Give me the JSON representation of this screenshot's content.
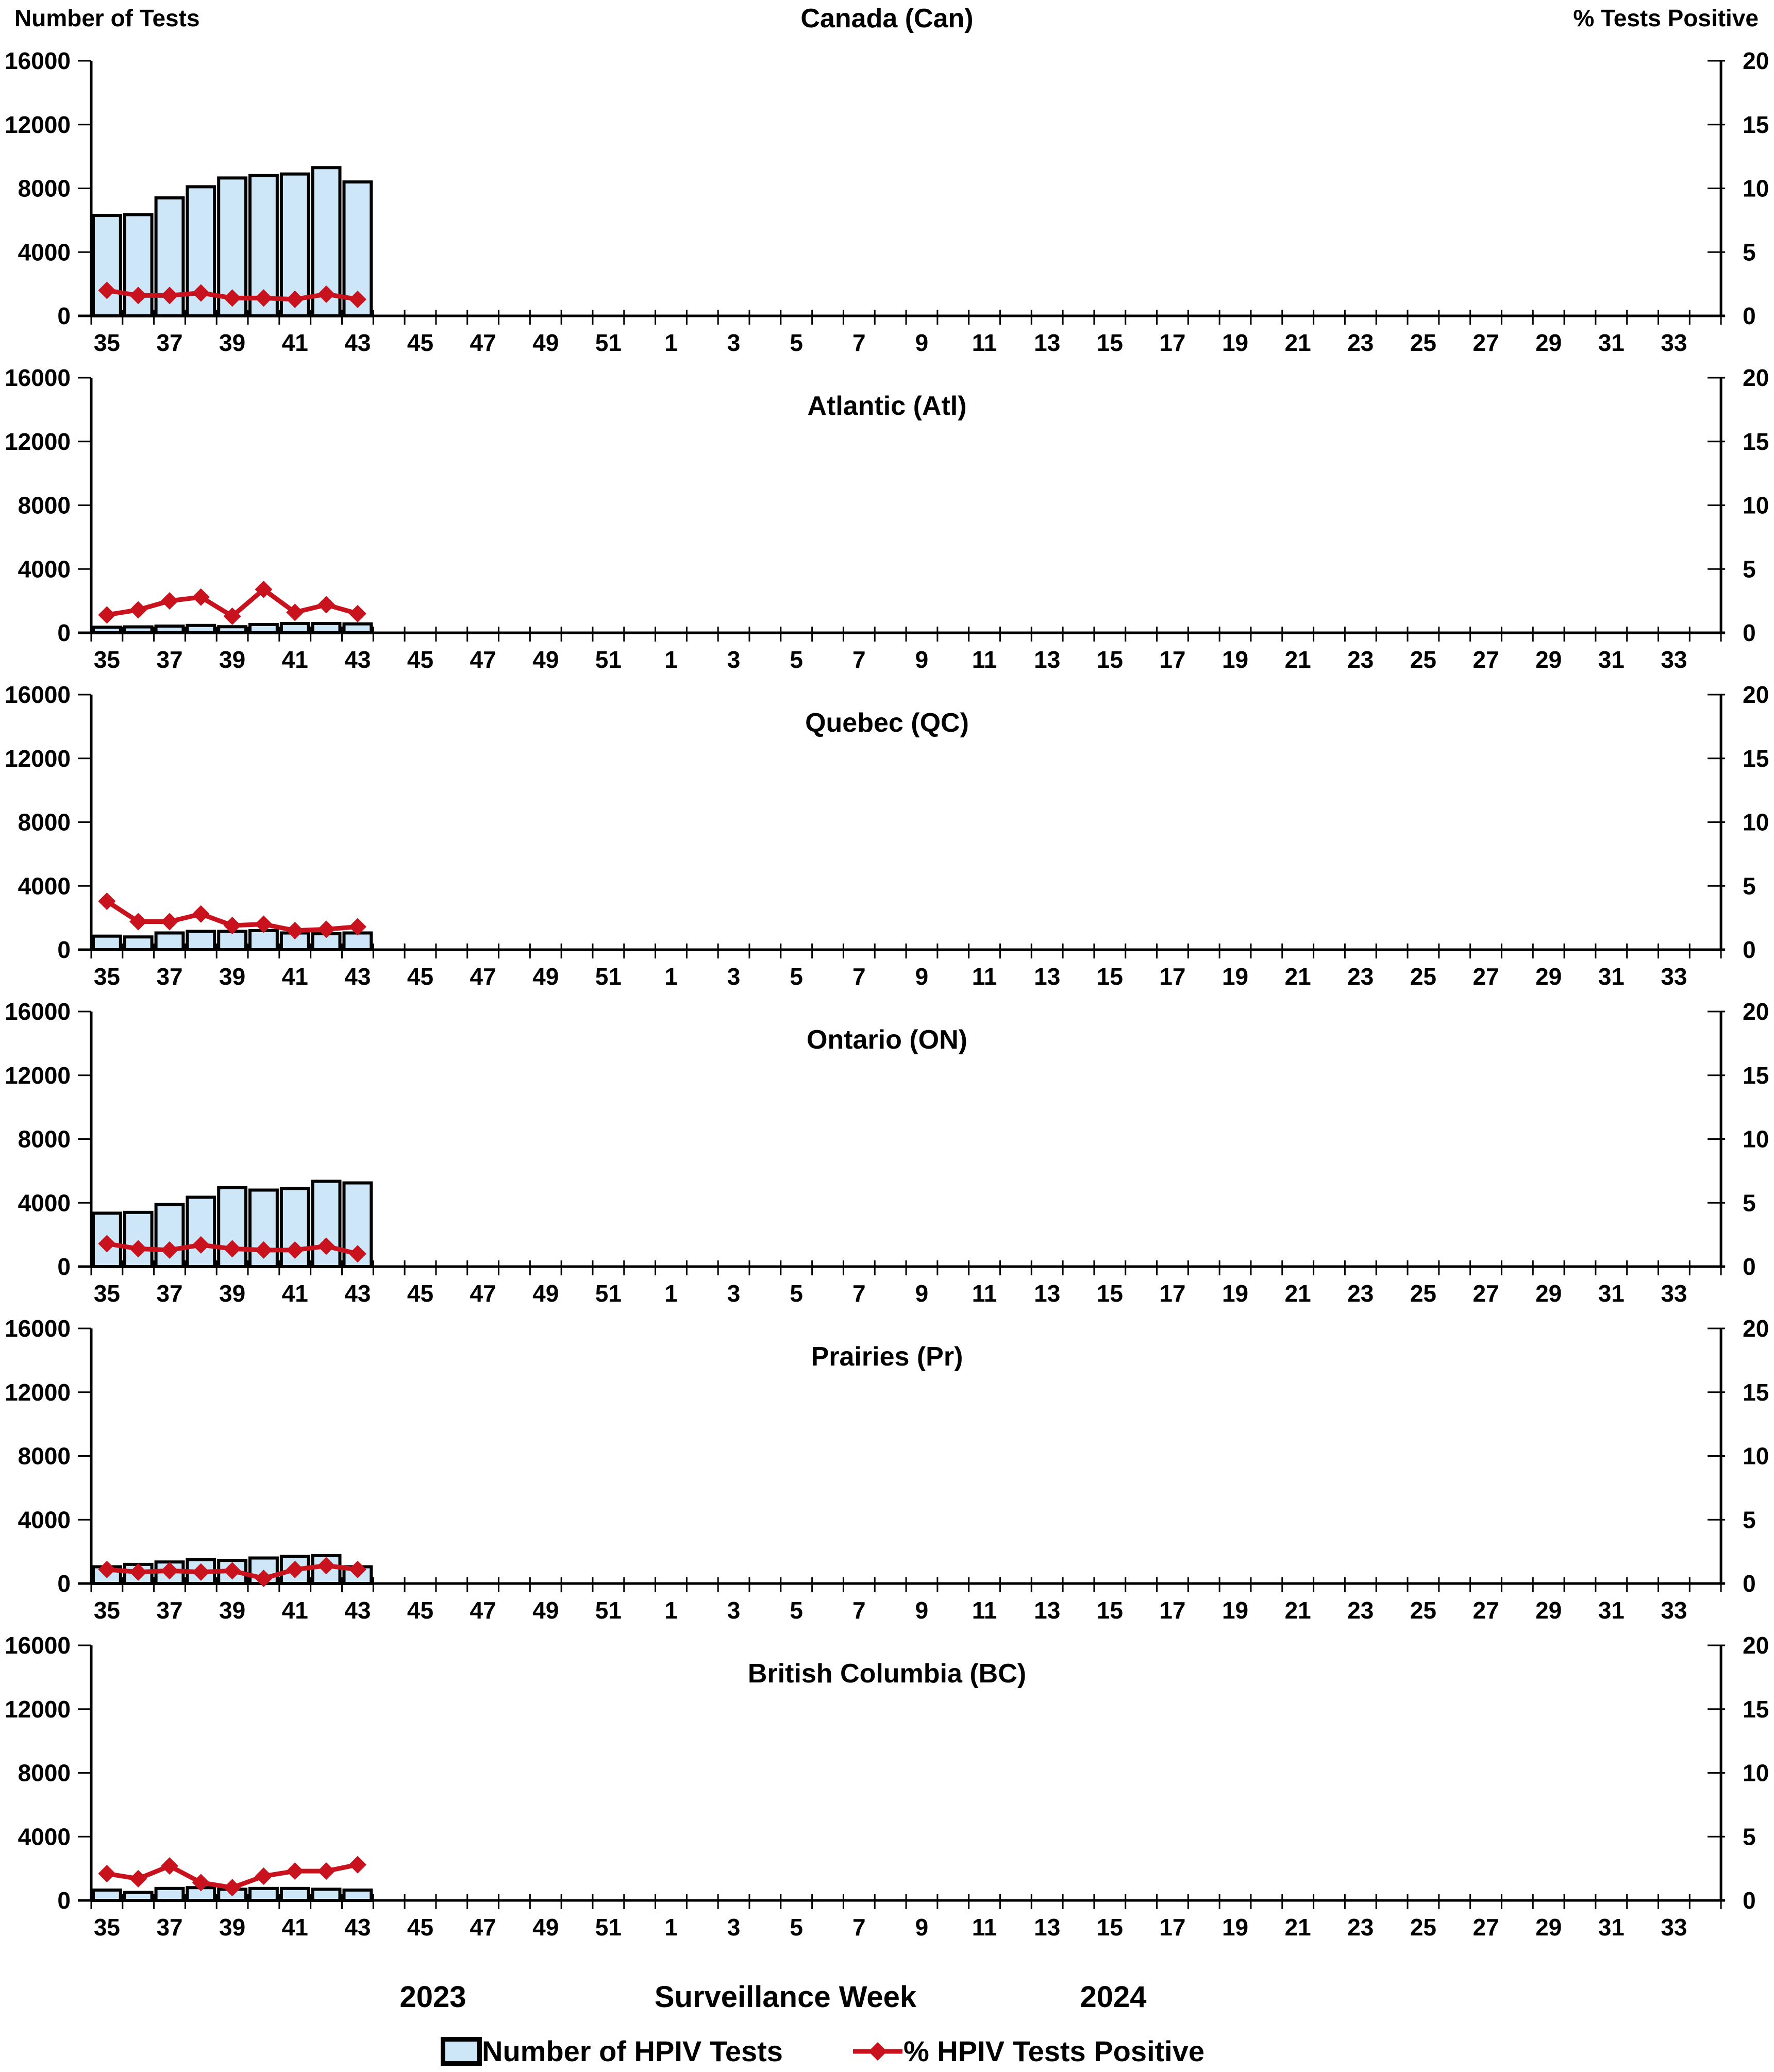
{
  "header": {
    "left_axis_title": "Number of Tests",
    "right_axis_title": "% Tests Positive"
  },
  "x_axis": {
    "title": "Surveillance Week",
    "year_left": "2023",
    "year_right": "2024",
    "weeks_total": 52,
    "tick_labels": [
      "35",
      "37",
      "39",
      "41",
      "43",
      "45",
      "47",
      "49",
      "51",
      "1",
      "3",
      "5",
      "7",
      "9",
      "11",
      "13",
      "15",
      "17",
      "19",
      "21",
      "23",
      "25",
      "27",
      "29",
      "31",
      "33"
    ]
  },
  "y_axis_left": {
    "label": "Number of Tests",
    "ticks": [
      "0",
      "4000",
      "8000",
      "12000",
      "16000"
    ],
    "max": 16000
  },
  "y_axis_right": {
    "label": "% Tests Positive",
    "ticks": [
      "0",
      "5",
      "10",
      "15",
      "20"
    ],
    "max": 20
  },
  "legend": {
    "bar_label": "Number of HPIV Tests",
    "line_label": "% HPIV Tests Positive"
  },
  "colors": {
    "bar_fill": "#cde7f8",
    "bar_border": "#000000",
    "line": "#c8121e",
    "axis": "#000000"
  },
  "chart_data": [
    {
      "type": "bar+line",
      "title": "Canada (Can)",
      "x": [
        35,
        36,
        37,
        38,
        39,
        40,
        41,
        42,
        43
      ],
      "series": [
        {
          "name": "Number of HPIV Tests",
          "axis": "left",
          "values": [
            6300,
            6350,
            7400,
            8100,
            8650,
            8800,
            8900,
            9300,
            8400
          ]
        },
        {
          "name": "% HPIV Tests Positive",
          "axis": "right",
          "values": [
            2.0,
            1.6,
            1.6,
            1.8,
            1.4,
            1.4,
            1.3,
            1.7,
            1.3
          ]
        }
      ],
      "ylim_left": [
        0,
        16000
      ],
      "ylim_right": [
        0,
        20
      ]
    },
    {
      "type": "bar+line",
      "title": "Atlantic (Atl)",
      "x": [
        35,
        36,
        37,
        38,
        39,
        40,
        41,
        42,
        43
      ],
      "series": [
        {
          "name": "Number of HPIV Tests",
          "axis": "left",
          "values": [
            350,
            370,
            420,
            460,
            380,
            520,
            580,
            580,
            560
          ]
        },
        {
          "name": "% HPIV Tests Positive",
          "axis": "right",
          "values": [
            1.4,
            1.8,
            2.5,
            2.8,
            1.3,
            3.4,
            1.6,
            2.2,
            1.5
          ]
        }
      ],
      "ylim_left": [
        0,
        16000
      ],
      "ylim_right": [
        0,
        20
      ]
    },
    {
      "type": "bar+line",
      "title": "Quebec (QC)",
      "x": [
        35,
        36,
        37,
        38,
        39,
        40,
        41,
        42,
        43
      ],
      "series": [
        {
          "name": "Number of HPIV Tests",
          "axis": "left",
          "values": [
            850,
            800,
            1050,
            1150,
            1150,
            1200,
            1050,
            1000,
            1050
          ]
        },
        {
          "name": "% HPIV Tests Positive",
          "axis": "right",
          "values": [
            3.8,
            2.2,
            2.2,
            2.8,
            1.9,
            2.0,
            1.5,
            1.6,
            1.8
          ]
        }
      ],
      "ylim_left": [
        0,
        16000
      ],
      "ylim_right": [
        0,
        20
      ]
    },
    {
      "type": "bar+line",
      "title": "Ontario (ON)",
      "x": [
        35,
        36,
        37,
        38,
        39,
        40,
        41,
        42,
        43
      ],
      "series": [
        {
          "name": "Number of HPIV Tests",
          "axis": "left",
          "values": [
            3350,
            3400,
            3900,
            4350,
            4950,
            4800,
            4900,
            5350,
            5250
          ]
        },
        {
          "name": "% HPIV Tests Positive",
          "axis": "right",
          "values": [
            1.8,
            1.4,
            1.3,
            1.7,
            1.4,
            1.3,
            1.3,
            1.6,
            1.0
          ]
        }
      ],
      "ylim_left": [
        0,
        16000
      ],
      "ylim_right": [
        0,
        20
      ]
    },
    {
      "type": "bar+line",
      "title": "Prairies (Pr)",
      "x": [
        35,
        36,
        37,
        38,
        39,
        40,
        41,
        42,
        43
      ],
      "series": [
        {
          "name": "Number of HPIV Tests",
          "axis": "left",
          "values": [
            1050,
            1200,
            1350,
            1500,
            1450,
            1600,
            1700,
            1750,
            1050
          ]
        },
        {
          "name": "% HPIV Tests Positive",
          "axis": "right",
          "values": [
            1.1,
            0.9,
            1.0,
            0.9,
            1.0,
            0.4,
            1.1,
            1.4,
            1.1
          ]
        }
      ],
      "ylim_left": [
        0,
        16000
      ],
      "ylim_right": [
        0,
        20
      ]
    },
    {
      "type": "bar+line",
      "title": "British Columbia (BC)",
      "x": [
        35,
        36,
        37,
        38,
        39,
        40,
        41,
        42,
        43
      ],
      "series": [
        {
          "name": "Number of HPIV Tests",
          "axis": "left",
          "values": [
            650,
            500,
            750,
            800,
            700,
            750,
            750,
            700,
            650
          ]
        },
        {
          "name": "% HPIV Tests Positive",
          "axis": "right",
          "values": [
            2.1,
            1.7,
            2.7,
            1.4,
            1.0,
            1.9,
            2.3,
            2.3,
            2.8
          ]
        }
      ],
      "ylim_left": [
        0,
        16000
      ],
      "ylim_right": [
        0,
        20
      ]
    }
  ]
}
